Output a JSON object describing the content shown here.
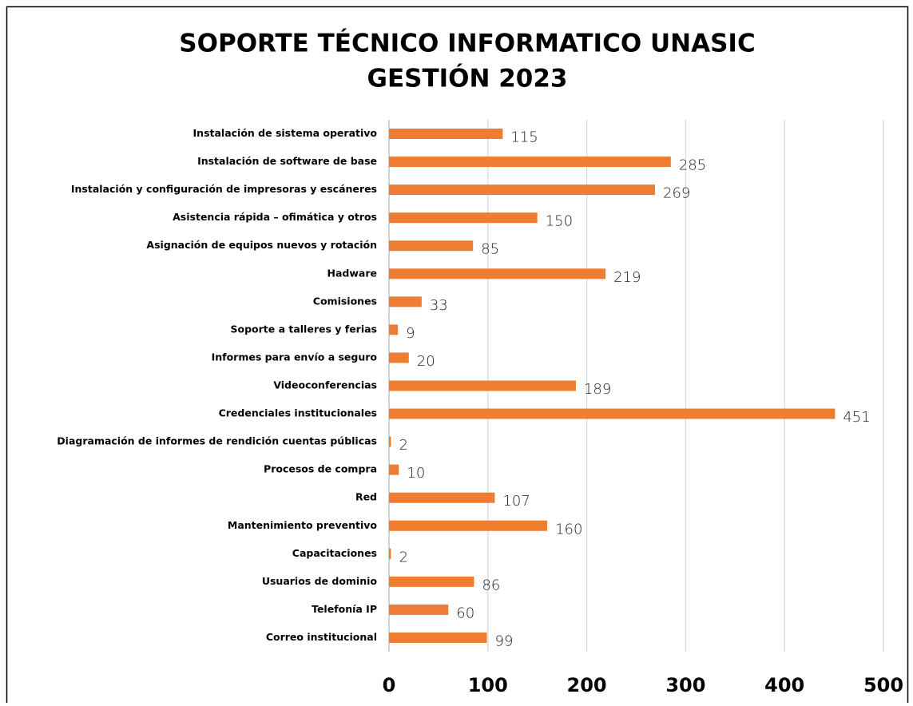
{
  "chart_data": {
    "type": "barh",
    "title": [
      "SOPORTE TÉCNICO INFORMATICO UNASIC",
      "GESTIÓN 2023"
    ],
    "categories": [
      "Instalación de sistema operativo",
      "Instalación de software de base",
      "Instalación y configuración de impresoras y escáneres",
      "Asistencia rápida – ofimática y otros",
      "Asignación de equipos nuevos y rotación",
      "Hadware",
      "Comisiones",
      "Soporte a talleres y ferias",
      "Informes para envío a seguro",
      "Videoconferencias",
      "Credenciales institucionales",
      "Diagramación de informes de rendición cuentas públicas",
      "Procesos de compra",
      "Red",
      "Mantenimiento preventivo",
      "Capacitaciones",
      "Usuarios de dominio",
      "Telefonía IP",
      "Correo institucional"
    ],
    "values": [
      115,
      285,
      269,
      150,
      85,
      219,
      33,
      9,
      20,
      189,
      451,
      2,
      10,
      107,
      160,
      2,
      86,
      60,
      99
    ],
    "color": "#ed7d31",
    "xlim": [
      0,
      500
    ],
    "xticks": [
      0,
      100,
      200,
      300,
      400,
      500
    ],
    "grid": true
  }
}
